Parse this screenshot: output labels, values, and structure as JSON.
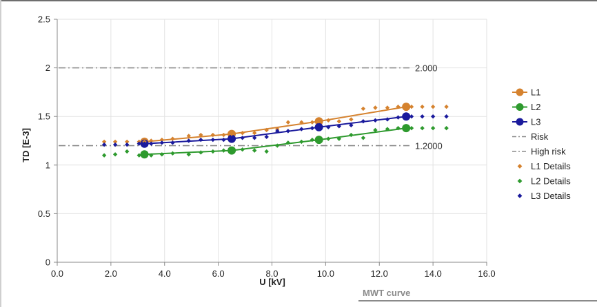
{
  "tab": {
    "label": "MWT curve"
  },
  "chart_data": {
    "type": "line",
    "xlabel": "U [kV]",
    "ylabel": "TD [E-3]",
    "xlim": [
      0,
      16
    ],
    "ylim": [
      0,
      2.5
    ],
    "x_ticks": [
      "0.0",
      "2.0",
      "4.0",
      "6.0",
      "8.0",
      "10.0",
      "12.0",
      "14.0",
      "16.0"
    ],
    "y_ticks": [
      "0",
      "0.5",
      "1",
      "1.5",
      "2",
      "2.5"
    ],
    "grid": true,
    "legend_position": "right",
    "reference_lines": [
      {
        "name": "Risk",
        "y": 1.2,
        "label": "1.2000",
        "color": "#8c8c8c",
        "style": "dash-dot"
      },
      {
        "name": "High risk",
        "y": 2.0,
        "label": "2.000",
        "color": "#8c8c8c",
        "style": "dash-dot"
      }
    ],
    "series": [
      {
        "name": "L1",
        "color": "#d5822e",
        "x": [
          3.25,
          6.5,
          9.75,
          13.0
        ],
        "y": [
          1.24,
          1.32,
          1.45,
          1.6
        ]
      },
      {
        "name": "L2",
        "color": "#2e9a2e",
        "x": [
          3.25,
          6.5,
          9.75,
          13.0
        ],
        "y": [
          1.11,
          1.15,
          1.26,
          1.38
        ]
      },
      {
        "name": "L3",
        "color": "#1a1a9c",
        "x": [
          3.25,
          6.5,
          9.75,
          13.0
        ],
        "y": [
          1.22,
          1.27,
          1.39,
          1.5
        ]
      }
    ],
    "details": [
      {
        "name": "L1 Details",
        "color": "#d5822e",
        "x": [
          1.75,
          2.16,
          2.6,
          3.05,
          3.25,
          3.5,
          3.9,
          4.3,
          4.9,
          5.35,
          5.8,
          6.2,
          6.5,
          6.9,
          7.35,
          7.8,
          8.2,
          8.6,
          9.1,
          9.5,
          9.75,
          10.1,
          10.5,
          10.95,
          11.4,
          11.85,
          12.3,
          12.7,
          13.0,
          13.2,
          13.6,
          14.0,
          14.5
        ],
        "y": [
          1.24,
          1.24,
          1.24,
          1.24,
          1.24,
          1.25,
          1.26,
          1.27,
          1.3,
          1.31,
          1.31,
          1.31,
          1.32,
          1.33,
          1.33,
          1.36,
          1.37,
          1.44,
          1.44,
          1.44,
          1.45,
          1.46,
          1.45,
          1.47,
          1.58,
          1.59,
          1.59,
          1.6,
          1.6,
          1.6,
          1.6,
          1.6,
          1.6
        ]
      },
      {
        "name": "L2 Details",
        "color": "#2e9a2e",
        "x": [
          1.75,
          2.16,
          2.6,
          3.05,
          3.25,
          3.5,
          3.9,
          4.3,
          4.9,
          5.35,
          5.8,
          6.2,
          6.5,
          6.9,
          7.35,
          7.8,
          8.2,
          8.6,
          9.1,
          9.5,
          9.75,
          10.1,
          10.5,
          10.95,
          11.4,
          11.85,
          12.3,
          12.7,
          13.0,
          13.2,
          13.6,
          14.0,
          14.5
        ],
        "y": [
          1.1,
          1.11,
          1.14,
          1.1,
          1.11,
          1.1,
          1.11,
          1.12,
          1.11,
          1.13,
          1.14,
          1.15,
          1.15,
          1.16,
          1.15,
          1.14,
          1.2,
          1.23,
          1.24,
          1.26,
          1.26,
          1.27,
          1.27,
          1.31,
          1.28,
          1.36,
          1.37,
          1.38,
          1.38,
          1.38,
          1.38,
          1.38,
          1.38
        ]
      },
      {
        "name": "L3 Details",
        "color": "#1a1a9c",
        "x": [
          1.75,
          2.16,
          2.6,
          3.05,
          3.25,
          3.5,
          3.9,
          4.3,
          4.9,
          5.35,
          5.8,
          6.2,
          6.5,
          6.9,
          7.35,
          7.8,
          8.2,
          8.6,
          9.1,
          9.5,
          9.75,
          10.1,
          10.5,
          10.95,
          11.4,
          11.85,
          12.3,
          12.7,
          13.0,
          13.2,
          13.6,
          14.0,
          14.5
        ],
        "y": [
          1.21,
          1.21,
          1.21,
          1.22,
          1.22,
          1.22,
          1.23,
          1.23,
          1.25,
          1.26,
          1.26,
          1.26,
          1.27,
          1.28,
          1.28,
          1.29,
          1.35,
          1.35,
          1.37,
          1.38,
          1.39,
          1.39,
          1.4,
          1.41,
          1.45,
          1.46,
          1.47,
          1.49,
          1.5,
          1.5,
          1.5,
          1.5,
          1.5
        ]
      }
    ]
  }
}
